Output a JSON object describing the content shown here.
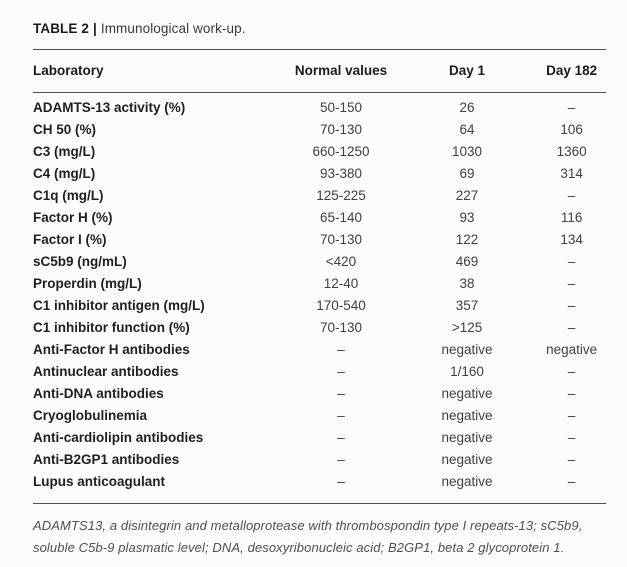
{
  "caption": {
    "label": "TABLE 2",
    "separator": "|",
    "text": "Immunological work-up."
  },
  "table": {
    "columns": [
      "Laboratory",
      "Normal values",
      "Day 1",
      "Day 182"
    ],
    "rows": [
      {
        "laboratory": "ADAMTS-13 activity (%)",
        "normal": "50-150",
        "day1": "26",
        "day182": "–"
      },
      {
        "laboratory": "CH 50 (%)",
        "normal": "70-130",
        "day1": "64",
        "day182": "106"
      },
      {
        "laboratory": "C3 (mg/L)",
        "normal": "660-1250",
        "day1": "1030",
        "day182": "1360"
      },
      {
        "laboratory": "C4 (mg/L)",
        "normal": "93-380",
        "day1": "69",
        "day182": "314"
      },
      {
        "laboratory": "C1q (mg/L)",
        "normal": "125-225",
        "day1": "227",
        "day182": "–"
      },
      {
        "laboratory": "Factor H (%)",
        "normal": "65-140",
        "day1": "93",
        "day182": "116"
      },
      {
        "laboratory": "Factor I (%)",
        "normal": "70-130",
        "day1": "122",
        "day182": "134"
      },
      {
        "laboratory": "sC5b9 (ng/mL)",
        "normal": "<420",
        "day1": "469",
        "day182": "–"
      },
      {
        "laboratory": "Properdin (mg/L)",
        "normal": "12-40",
        "day1": "38",
        "day182": "–"
      },
      {
        "laboratory": "C1 inhibitor antigen (mg/L)",
        "normal": "170-540",
        "day1": "357",
        "day182": "–"
      },
      {
        "laboratory": "C1 inhibitor function (%)",
        "normal": "70-130",
        "day1": ">125",
        "day182": "–"
      },
      {
        "laboratory": "Anti-Factor H antibodies",
        "normal": "–",
        "day1": "negative",
        "day182": "negative"
      },
      {
        "laboratory": "Antinuclear antibodies",
        "normal": "–",
        "day1": "1/160",
        "day182": "–"
      },
      {
        "laboratory": "Anti-DNA antibodies",
        "normal": "–",
        "day1": "negative",
        "day182": "–"
      },
      {
        "laboratory": "Cryoglobulinemia",
        "normal": "–",
        "day1": "negative",
        "day182": "–"
      },
      {
        "laboratory": "Anti-cardiolipin antibodies",
        "normal": "–",
        "day1": "negative",
        "day182": "–"
      },
      {
        "laboratory": "Anti-B2GP1 antibodies",
        "normal": "–",
        "day1": "negative",
        "day182": "–"
      },
      {
        "laboratory": "Lupus anticoagulant",
        "normal": "–",
        "day1": "negative",
        "day182": "–"
      }
    ]
  },
  "footnote": "ADAMTS13, a disintegrin and metalloprotease with thrombospondin type I repeats-13; sC5b9, soluble C5b-9 plasmatic level; DNA, desoxyribonucleic acid; B2GP1, beta 2 glycoprotein 1.",
  "colors": {
    "text_primary": "#1b1b1b",
    "text_values": "#3f3f3f",
    "rule": "#4d4d4d",
    "footnote_text": "#4f4f4f",
    "background": "#fcfcfc"
  }
}
